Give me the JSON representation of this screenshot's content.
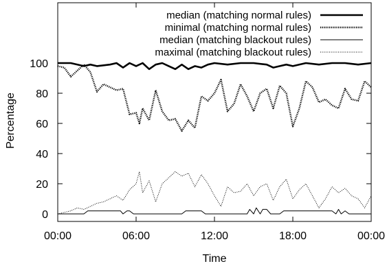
{
  "chart_data": {
    "type": "line",
    "xlabel": "Time",
    "ylabel": "Percentage",
    "xlim": [
      0,
      24
    ],
    "ylim": [
      -5,
      140
    ],
    "x_ticks": [
      0,
      6,
      12,
      18,
      24
    ],
    "x_tick_labels": [
      "00:00",
      "06:00",
      "12:00",
      "18:00",
      "00:00"
    ],
    "y_ticks": [
      0,
      20,
      40,
      60,
      80,
      100
    ],
    "y_tick_labels": [
      "0",
      "20",
      "40",
      "60",
      "80",
      "100"
    ],
    "grid": false,
    "legend_position": "top-right",
    "series": [
      {
        "name": "median (matching normal rules)",
        "style": "thick-solid",
        "x": [
          0,
          1,
          2,
          2.5,
          3,
          4,
          4.5,
          5,
          5.5,
          6,
          6.5,
          7,
          7.5,
          8,
          8.5,
          9,
          9.5,
          10,
          10.5,
          11,
          11.5,
          12,
          13,
          14,
          15,
          16,
          16.5,
          17,
          17.5,
          18,
          19,
          20,
          21,
          22,
          23,
          24
        ],
        "y": [
          100,
          100,
          98,
          99,
          98,
          99,
          100,
          97,
          100,
          98,
          100,
          96,
          99,
          100,
          98,
          96,
          99,
          96,
          98,
          97,
          99,
          100,
          99,
          100,
          100,
          99,
          97,
          98,
          99,
          98,
          100,
          99,
          100,
          100,
          99,
          100
        ]
      },
      {
        "name": "minimal (matching normal rules)",
        "style": "thick-dotted",
        "x": [
          0,
          0.5,
          1,
          1.5,
          2,
          2.5,
          3,
          3.5,
          4,
          4.5,
          5,
          5.5,
          6,
          6.25,
          6.5,
          7,
          7.5,
          8,
          8.5,
          9,
          9.5,
          10,
          10.5,
          11,
          11.5,
          12,
          12.5,
          13,
          13.5,
          14,
          14.5,
          15,
          15.5,
          16,
          16.5,
          17,
          17.5,
          18,
          18.5,
          19,
          19.5,
          20,
          20.5,
          21,
          21.5,
          22,
          22.5,
          23,
          23.5,
          24
        ],
        "y": [
          98,
          97,
          91,
          95,
          99,
          94,
          81,
          86,
          84,
          82,
          83,
          66,
          67,
          60,
          70,
          62,
          82,
          68,
          62,
          63,
          55,
          62,
          57,
          78,
          75,
          80,
          89,
          68,
          73,
          86,
          78,
          68,
          80,
          83,
          70,
          85,
          80,
          58,
          70,
          88,
          84,
          74,
          76,
          72,
          70,
          83,
          76,
          75,
          88,
          84
        ]
      },
      {
        "name": "median (matching blackout rules)",
        "style": "thin-solid",
        "x": [
          0,
          2,
          2.3,
          4.8,
          5,
          5.3,
          5.5,
          5.8,
          9.5,
          9.8,
          11,
          11.3,
          14.5,
          14.7,
          15,
          15.2,
          15.5,
          15.7,
          16,
          16.3,
          17,
          17.3,
          21,
          21.3,
          21.5,
          21.7,
          22,
          22.3,
          24
        ],
        "y": [
          0,
          0,
          2,
          2,
          0,
          2,
          2,
          0,
          0,
          2,
          2,
          0,
          0,
          3,
          0,
          4,
          0,
          3,
          3,
          0,
          0,
          2,
          2,
          0,
          3,
          0,
          2,
          0,
          0
        ]
      },
      {
        "name": "maximal (matching blackout rules)",
        "style": "thin-dotted",
        "x": [
          0,
          0.5,
          1,
          1.5,
          2,
          2.5,
          3,
          3.5,
          4,
          4.5,
          5,
          5.5,
          6,
          6.25,
          6.5,
          7,
          7.5,
          8,
          8.5,
          9,
          9.5,
          10,
          10.5,
          11,
          11.5,
          12,
          12.5,
          13,
          13.5,
          14,
          14.5,
          15,
          15.5,
          16,
          16.5,
          17,
          17.5,
          18,
          18.5,
          19,
          19.5,
          20,
          20.5,
          21,
          21.5,
          22,
          22.5,
          23,
          23.5,
          24
        ],
        "y": [
          0,
          1,
          2,
          4,
          3,
          5,
          7,
          8,
          10,
          12,
          9,
          16,
          20,
          28,
          14,
          22,
          8,
          20,
          24,
          28,
          25,
          27,
          18,
          26,
          20,
          12,
          5,
          18,
          14,
          15,
          20,
          12,
          18,
          20,
          9,
          18,
          23,
          10,
          16,
          20,
          12,
          4,
          10,
          18,
          14,
          17,
          12,
          10,
          4,
          12
        ]
      }
    ]
  }
}
